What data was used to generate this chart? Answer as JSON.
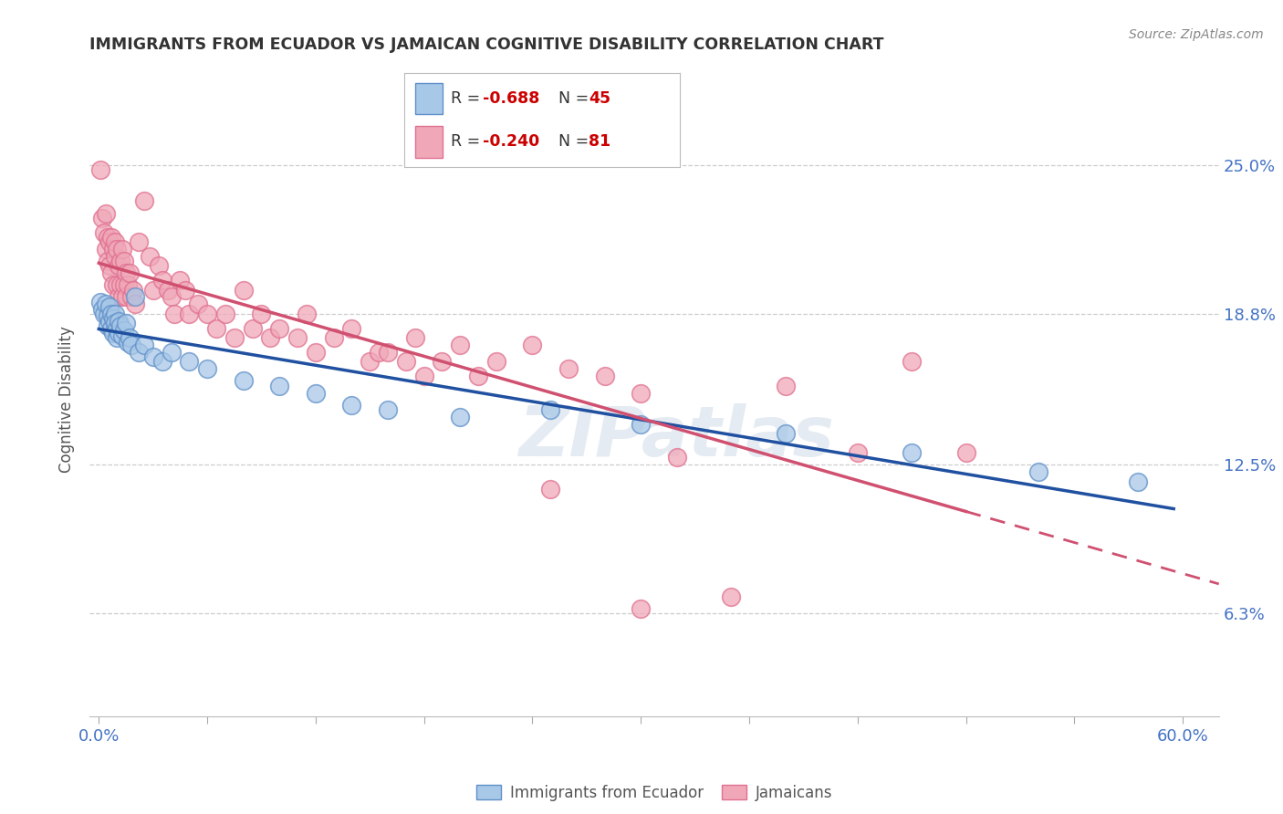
{
  "title": "IMMIGRANTS FROM ECUADOR VS JAMAICAN COGNITIVE DISABILITY CORRELATION CHART",
  "source": "Source: ZipAtlas.com",
  "ylabel": "Cognitive Disability",
  "y_ticks": [
    0.063,
    0.125,
    0.188,
    0.25
  ],
  "y_tick_labels": [
    "6.3%",
    "12.5%",
    "18.8%",
    "25.0%"
  ],
  "xlim": [
    -0.005,
    0.62
  ],
  "ylim": [
    0.02,
    0.285
  ],
  "blue_R": "-0.688",
  "blue_N": "45",
  "pink_R": "-0.240",
  "pink_N": "81",
  "blue_color": "#a8c8e8",
  "pink_color": "#f0a8b8",
  "blue_edge_color": "#6090c8",
  "pink_edge_color": "#e07090",
  "blue_line_color": "#2050a0",
  "pink_line_color": "#d05070",
  "watermark": "ZIPatlas",
  "legend_label_blue": "Immigrants from Ecuador",
  "legend_label_pink": "Jamaicans",
  "blue_points": [
    [
      0.001,
      0.193
    ],
    [
      0.002,
      0.19
    ],
    [
      0.003,
      0.188
    ],
    [
      0.004,
      0.192
    ],
    [
      0.005,
      0.187
    ],
    [
      0.005,
      0.183
    ],
    [
      0.006,
      0.191
    ],
    [
      0.006,
      0.185
    ],
    [
      0.007,
      0.188
    ],
    [
      0.007,
      0.182
    ],
    [
      0.008,
      0.186
    ],
    [
      0.008,
      0.18
    ],
    [
      0.009,
      0.188
    ],
    [
      0.009,
      0.184
    ],
    [
      0.01,
      0.182
    ],
    [
      0.01,
      0.178
    ],
    [
      0.011,
      0.185
    ],
    [
      0.011,
      0.18
    ],
    [
      0.012,
      0.183
    ],
    [
      0.013,
      0.179
    ],
    [
      0.014,
      0.181
    ],
    [
      0.015,
      0.184
    ],
    [
      0.016,
      0.176
    ],
    [
      0.017,
      0.178
    ],
    [
      0.018,
      0.175
    ],
    [
      0.02,
      0.195
    ],
    [
      0.022,
      0.172
    ],
    [
      0.025,
      0.175
    ],
    [
      0.03,
      0.17
    ],
    [
      0.035,
      0.168
    ],
    [
      0.04,
      0.172
    ],
    [
      0.05,
      0.168
    ],
    [
      0.06,
      0.165
    ],
    [
      0.08,
      0.16
    ],
    [
      0.1,
      0.158
    ],
    [
      0.12,
      0.155
    ],
    [
      0.14,
      0.15
    ],
    [
      0.16,
      0.148
    ],
    [
      0.2,
      0.145
    ],
    [
      0.25,
      0.148
    ],
    [
      0.3,
      0.142
    ],
    [
      0.38,
      0.138
    ],
    [
      0.45,
      0.13
    ],
    [
      0.52,
      0.122
    ],
    [
      0.575,
      0.118
    ]
  ],
  "pink_points": [
    [
      0.001,
      0.248
    ],
    [
      0.002,
      0.228
    ],
    [
      0.003,
      0.222
    ],
    [
      0.004,
      0.215
    ],
    [
      0.004,
      0.23
    ],
    [
      0.005,
      0.22
    ],
    [
      0.005,
      0.21
    ],
    [
      0.006,
      0.218
    ],
    [
      0.006,
      0.208
    ],
    [
      0.007,
      0.22
    ],
    [
      0.007,
      0.205
    ],
    [
      0.008,
      0.215
    ],
    [
      0.008,
      0.2
    ],
    [
      0.009,
      0.212
    ],
    [
      0.009,
      0.218
    ],
    [
      0.01,
      0.2
    ],
    [
      0.01,
      0.215
    ],
    [
      0.011,
      0.208
    ],
    [
      0.011,
      0.195
    ],
    [
      0.012,
      0.21
    ],
    [
      0.012,
      0.2
    ],
    [
      0.013,
      0.215
    ],
    [
      0.013,
      0.195
    ],
    [
      0.014,
      0.2
    ],
    [
      0.014,
      0.21
    ],
    [
      0.015,
      0.195
    ],
    [
      0.015,
      0.205
    ],
    [
      0.016,
      0.2
    ],
    [
      0.017,
      0.205
    ],
    [
      0.018,
      0.195
    ],
    [
      0.019,
      0.198
    ],
    [
      0.02,
      0.192
    ],
    [
      0.022,
      0.218
    ],
    [
      0.025,
      0.235
    ],
    [
      0.028,
      0.212
    ],
    [
      0.03,
      0.198
    ],
    [
      0.033,
      0.208
    ],
    [
      0.035,
      0.202
    ],
    [
      0.038,
      0.198
    ],
    [
      0.04,
      0.195
    ],
    [
      0.042,
      0.188
    ],
    [
      0.045,
      0.202
    ],
    [
      0.048,
      0.198
    ],
    [
      0.05,
      0.188
    ],
    [
      0.055,
      0.192
    ],
    [
      0.06,
      0.188
    ],
    [
      0.065,
      0.182
    ],
    [
      0.07,
      0.188
    ],
    [
      0.075,
      0.178
    ],
    [
      0.08,
      0.198
    ],
    [
      0.085,
      0.182
    ],
    [
      0.09,
      0.188
    ],
    [
      0.095,
      0.178
    ],
    [
      0.1,
      0.182
    ],
    [
      0.11,
      0.178
    ],
    [
      0.115,
      0.188
    ],
    [
      0.12,
      0.172
    ],
    [
      0.13,
      0.178
    ],
    [
      0.14,
      0.182
    ],
    [
      0.15,
      0.168
    ],
    [
      0.155,
      0.172
    ],
    [
      0.16,
      0.172
    ],
    [
      0.17,
      0.168
    ],
    [
      0.175,
      0.178
    ],
    [
      0.18,
      0.162
    ],
    [
      0.19,
      0.168
    ],
    [
      0.2,
      0.175
    ],
    [
      0.21,
      0.162
    ],
    [
      0.22,
      0.168
    ],
    [
      0.24,
      0.175
    ],
    [
      0.26,
      0.165
    ],
    [
      0.28,
      0.162
    ],
    [
      0.3,
      0.155
    ],
    [
      0.32,
      0.128
    ],
    [
      0.38,
      0.158
    ],
    [
      0.42,
      0.13
    ],
    [
      0.25,
      0.115
    ],
    [
      0.35,
      0.07
    ],
    [
      0.3,
      0.065
    ],
    [
      0.45,
      0.168
    ],
    [
      0.48,
      0.13
    ]
  ]
}
